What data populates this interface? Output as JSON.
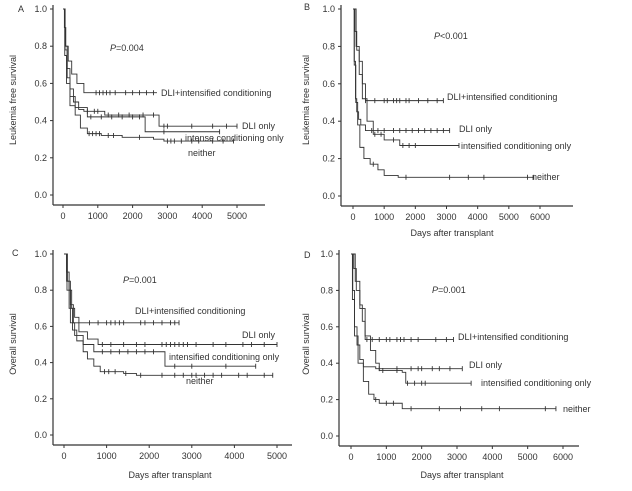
{
  "colors": {
    "line": "#333333",
    "axis": "#333333",
    "background": "#ffffff"
  },
  "chart_data": [
    {
      "type": "line",
      "panel": "A",
      "title": "",
      "pvalue_prefix": "P",
      "pvalue_rest": "=0.004",
      "xlabel": "",
      "ylabel": "Leukemia free survival",
      "xlim": [
        0,
        5000
      ],
      "ylim": [
        0,
        1
      ],
      "xticks": [
        "0",
        "1000",
        "2000",
        "3000",
        "4000",
        "5000"
      ],
      "yticks": [
        "0.0",
        "0.2",
        "0.4",
        "0.6",
        "0.8",
        "1.0"
      ],
      "series": [
        {
          "name": "DLI+intensified conditioning",
          "steps": [
            [
              0,
              1
            ],
            [
              40,
              0.9
            ],
            [
              80,
              0.8
            ],
            [
              150,
              0.72
            ],
            [
              250,
              0.65
            ],
            [
              400,
              0.6
            ],
            [
              600,
              0.55
            ],
            [
              2700,
              0.55
            ]
          ],
          "censored": [
            950,
            1050,
            1150,
            1250,
            1350,
            1500,
            1800,
            2000,
            2200,
            2400,
            2600
          ]
        },
        {
          "name": "DLI only",
          "steps": [
            [
              0,
              1
            ],
            [
              60,
              0.8
            ],
            [
              120,
              0.68
            ],
            [
              200,
              0.57
            ],
            [
              300,
              0.5
            ],
            [
              450,
              0.46
            ],
            [
              600,
              0.45
            ],
            [
              1200,
              0.43
            ],
            [
              2750,
              0.43
            ],
            [
              2760,
              0.37
            ],
            [
              5000,
              0.37
            ]
          ],
          "censored": [
            700,
            900,
            1000,
            1300,
            1600,
            1900,
            2300,
            2600,
            2900,
            3000,
            3700,
            4300,
            4700,
            5000
          ]
        },
        {
          "name": "intense conditioning only",
          "steps": [
            [
              0,
              1
            ],
            [
              60,
              0.78
            ],
            [
              120,
              0.63
            ],
            [
              200,
              0.53
            ],
            [
              350,
              0.47
            ],
            [
              700,
              0.42
            ],
            [
              2350,
              0.42
            ],
            [
              2360,
              0.34
            ],
            [
              4500,
              0.34
            ]
          ],
          "censored": [
            800,
            1100,
            1400,
            1700,
            2000,
            2200,
            2900,
            4500
          ]
        },
        {
          "name": "neither",
          "steps": [
            [
              0,
              1
            ],
            [
              50,
              0.75
            ],
            [
              100,
              0.6
            ],
            [
              200,
              0.48
            ],
            [
              350,
              0.43
            ],
            [
              500,
              0.36
            ],
            [
              700,
              0.33
            ],
            [
              1100,
              0.32
            ],
            [
              1700,
              0.31
            ],
            [
              2600,
              0.3
            ],
            [
              2900,
              0.29
            ],
            [
              4900,
              0.29
            ]
          ],
          "censored": [
            750,
            850,
            950,
            1050,
            1300,
            1450,
            2200,
            3000,
            3100,
            3200,
            3400,
            3700,
            3900,
            4300,
            4600,
            4900
          ]
        }
      ]
    },
    {
      "type": "line",
      "panel": "B",
      "title": "",
      "pvalue_prefix": "P",
      "pvalue_rest": "<0.001",
      "xlabel": "Days after transplant",
      "ylabel": "Leukemia free survival",
      "xlim": [
        0,
        6000
      ],
      "ylim": [
        0,
        1
      ],
      "xticks": [
        "0",
        "1000",
        "2000",
        "3000",
        "4000",
        "5000",
        "6000"
      ],
      "yticks": [
        "0.0",
        "0.2",
        "0.4",
        "0.6",
        "0.8",
        "1.0"
      ],
      "series": [
        {
          "name": "DLI+intensified conditioning",
          "steps": [
            [
              0,
              1
            ],
            [
              60,
              0.88
            ],
            [
              120,
              0.78
            ],
            [
              200,
              0.72
            ],
            [
              300,
              0.6
            ],
            [
              400,
              0.51
            ],
            [
              2900,
              0.51
            ]
          ],
          "censored": [
            400,
            700,
            1000,
            1100,
            1300,
            1400,
            1500,
            1700,
            1800,
            2100,
            2400,
            2700,
            2900
          ]
        },
        {
          "name": "DLI only",
          "steps": [
            [
              0,
              1
            ],
            [
              40,
              0.72
            ],
            [
              80,
              0.52
            ],
            [
              120,
              0.45
            ],
            [
              180,
              0.41
            ],
            [
              250,
              0.38
            ],
            [
              400,
              0.35
            ],
            [
              3100,
              0.35
            ]
          ],
          "censored": [
            600,
            800,
            1000,
            1300,
            1500,
            1700,
            1900,
            2100,
            2300,
            2500,
            2700,
            2900,
            3100
          ]
        },
        {
          "name": "intensified conditioning only",
          "steps": [
            [
              0,
              1
            ],
            [
              100,
              0.8
            ],
            [
              200,
              0.65
            ],
            [
              300,
              0.52
            ],
            [
              450,
              0.4
            ],
            [
              650,
              0.33
            ],
            [
              1000,
              0.3
            ],
            [
              1500,
              0.27
            ],
            [
              3400,
              0.27
            ]
          ],
          "censored": [
            700,
            900,
            1300,
            1600,
            1800,
            2000,
            3400
          ]
        },
        {
          "name": "neither",
          "steps": [
            [
              0,
              1
            ],
            [
              40,
              0.7
            ],
            [
              90,
              0.5
            ],
            [
              150,
              0.38
            ],
            [
              220,
              0.26
            ],
            [
              350,
              0.2
            ],
            [
              550,
              0.17
            ],
            [
              800,
              0.14
            ],
            [
              1000,
              0.11
            ],
            [
              1450,
              0.1
            ],
            [
              5800,
              0.1
            ]
          ],
          "censored": [
            650,
            1700,
            3100,
            3700,
            4200,
            5600,
            5800
          ]
        }
      ]
    },
    {
      "type": "line",
      "panel": "C",
      "title": "",
      "pvalue_prefix": "P",
      "pvalue_rest": "=0.001",
      "xlabel": "Days after transplant",
      "ylabel": "Overall  survival",
      "xlim": [
        0,
        5000
      ],
      "ylim": [
        0,
        1
      ],
      "xticks": [
        "0",
        "1000",
        "2000",
        "3000",
        "4000",
        "5000"
      ],
      "yticks": [
        "0.0",
        "0.2",
        "0.4",
        "0.6",
        "0.8",
        "1.0"
      ],
      "series": [
        {
          "name": "DLI+intensified conditioning",
          "steps": [
            [
              0,
              1
            ],
            [
              60,
              0.9
            ],
            [
              120,
              0.8
            ],
            [
              180,
              0.7
            ],
            [
              250,
              0.65
            ],
            [
              350,
              0.62
            ],
            [
              2700,
              0.62
            ]
          ],
          "censored": [
            600,
            800,
            1000,
            1100,
            1200,
            1300,
            1400,
            1800,
            1900,
            2100,
            2300,
            2500,
            2600,
            2700
          ]
        },
        {
          "name": "DLI only",
          "steps": [
            [
              0,
              1
            ],
            [
              80,
              0.85
            ],
            [
              150,
              0.72
            ],
            [
              220,
              0.62
            ],
            [
              350,
              0.57
            ],
            [
              550,
              0.53
            ],
            [
              800,
              0.5
            ],
            [
              1200,
              0.5
            ],
            [
              5000,
              0.5
            ]
          ],
          "censored": [
            900,
            1100,
            1400,
            1700,
            1900,
            2300,
            2400,
            2500,
            2600,
            2700,
            2800,
            2900,
            3100,
            3500,
            3800,
            4200,
            4400,
            4700,
            5000
          ]
        },
        {
          "name": "intensified conditioning only",
          "steps": [
            [
              0,
              1
            ],
            [
              70,
              0.8
            ],
            [
              150,
              0.62
            ],
            [
              250,
              0.55
            ],
            [
              450,
              0.5
            ],
            [
              700,
              0.46
            ],
            [
              2360,
              0.46
            ],
            [
              2370,
              0.38
            ],
            [
              4500,
              0.38
            ]
          ],
          "censored": [
            900,
            1100,
            1300,
            1500,
            1700,
            1900,
            2100,
            2600,
            3000,
            3800,
            4500
          ]
        },
        {
          "name": "neither",
          "steps": [
            [
              0,
              1
            ],
            [
              60,
              0.85
            ],
            [
              120,
              0.7
            ],
            [
              200,
              0.58
            ],
            [
              300,
              0.52
            ],
            [
              450,
              0.46
            ],
            [
              550,
              0.42
            ],
            [
              700,
              0.38
            ],
            [
              850,
              0.35
            ],
            [
              1400,
              0.34
            ],
            [
              1700,
              0.33
            ],
            [
              4900,
              0.33
            ]
          ],
          "censored": [
            950,
            1050,
            1200,
            1450,
            1800,
            2300,
            2600,
            2800,
            3000,
            3100,
            3300,
            3500,
            3700,
            4100,
            4300,
            4700,
            4900
          ]
        }
      ]
    },
    {
      "type": "line",
      "panel": "D",
      "title": "",
      "pvalue_prefix": "P",
      "pvalue_rest": "=0.001",
      "xlabel": "Days after transplant",
      "ylabel": "Overall  survival",
      "xlim": [
        0,
        6000
      ],
      "ylim": [
        0,
        1
      ],
      "xticks": [
        "0",
        "1000",
        "2000",
        "3000",
        "4000",
        "5000",
        "6000"
      ],
      "yticks": [
        "0.0",
        "0.2",
        "0.4",
        "0.6",
        "0.8",
        "1.0"
      ],
      "series": [
        {
          "name": "DLI+intensified conditioning",
          "steps": [
            [
              0,
              1
            ],
            [
              80,
              0.92
            ],
            [
              150,
              0.8
            ],
            [
              250,
              0.72
            ],
            [
              320,
              0.63
            ],
            [
              400,
              0.53
            ],
            [
              2900,
              0.53
            ]
          ],
          "censored": [
            450,
            600,
            800,
            1000,
            1100,
            1300,
            1400,
            1500,
            1700,
            1900,
            2400,
            2700,
            2900
          ]
        },
        {
          "name": "DLI only",
          "steps": [
            [
              0,
              1
            ],
            [
              50,
              0.8
            ],
            [
              100,
              0.6
            ],
            [
              170,
              0.5
            ],
            [
              250,
              0.42
            ],
            [
              350,
              0.38
            ],
            [
              700,
              0.37
            ],
            [
              3150,
              0.37
            ]
          ],
          "censored": [
            800,
            1300,
            1700,
            1900,
            2000,
            2300,
            2500,
            2800,
            3150
          ]
        },
        {
          "name": "intensified conditioning only",
          "steps": [
            [
              0,
              1
            ],
            [
              120,
              0.85
            ],
            [
              250,
              0.7
            ],
            [
              400,
              0.55
            ],
            [
              550,
              0.47
            ],
            [
              700,
              0.4
            ],
            [
              800,
              0.36
            ],
            [
              1450,
              0.35
            ],
            [
              1550,
              0.29
            ],
            [
              3400,
              0.29
            ]
          ],
          "censored": [
            900,
            1300,
            1600,
            1800,
            2000,
            2100,
            3400
          ]
        },
        {
          "name": "neither",
          "steps": [
            [
              0,
              1
            ],
            [
              40,
              0.75
            ],
            [
              100,
              0.55
            ],
            [
              200,
              0.4
            ],
            [
              350,
              0.3
            ],
            [
              500,
              0.23
            ],
            [
              650,
              0.2
            ],
            [
              800,
              0.18
            ],
            [
              1450,
              0.15
            ],
            [
              5800,
              0.15
            ]
          ],
          "censored": [
            700,
            1000,
            1200,
            1700,
            2500,
            3100,
            3700,
            4200,
            5500,
            5800
          ]
        }
      ]
    }
  ]
}
